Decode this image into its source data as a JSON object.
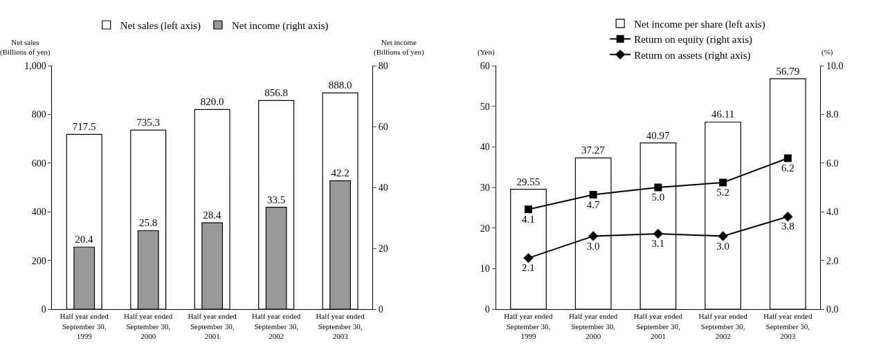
{
  "chart_data": [
    {
      "type": "bar",
      "categories": [
        "Half year ended September 30, 1999",
        "Half year ended September 30, 2000",
        "Half year ended September 30, 2001",
        "Half year ended September 30, 2002",
        "Half year ended September 30, 2003"
      ],
      "ylabel": "Net sales\n(Billions of yen)",
      "y2label": "Net income\n(Billions of yen)",
      "series": [
        {
          "name": "Net sales (left axis)",
          "color": "#ffffff",
          "values": [
            717.5,
            735.3,
            820.0,
            856.8,
            888.0
          ],
          "value_labels": [
            "717.5",
            "735.3",
            "820.0",
            "856.8",
            "888.0"
          ]
        },
        {
          "name": "Net income (right axis)",
          "axis": "y2",
          "color": "#999999",
          "values": [
            20.4,
            25.8,
            28.4,
            33.5,
            42.2
          ],
          "value_labels": [
            "20.4",
            "25.8",
            "28.4",
            "33.5",
            "42.2"
          ]
        }
      ],
      "ylim": [
        0,
        1000
      ],
      "yticks": [
        0,
        200,
        400,
        600,
        800,
        {
          "value": 1000,
          "label": "1,000"
        }
      ],
      "y2lim": [
        0,
        80
      ],
      "y2ticks": [
        0,
        20,
        40,
        60,
        80
      ],
      "grid": false,
      "legend": "top"
    },
    {
      "type": "bar",
      "categories": [
        "Half year ended September 30, 1999",
        "Half year ended September 30, 2000",
        "Half year ended September 30, 2001",
        "Half year ended September 30, 2002",
        "Half year ended September 30, 2003"
      ],
      "ylabel": "(Yen)",
      "y2label": "(%)",
      "series": [
        {
          "name": "Net income per share (left axis)",
          "color": "#ffffff",
          "values": [
            29.55,
            37.27,
            40.97,
            46.11,
            56.79
          ],
          "value_labels": [
            "29.55",
            "37.27",
            "40.97",
            "46.11",
            "56.79"
          ]
        },
        {
          "name": "Return on equity (right axis)",
          "type": "line",
          "axis": "y2",
          "marker": "square",
          "color": "#000000",
          "values": [
            4.1,
            4.7,
            5.0,
            5.2,
            6.2
          ],
          "value_labels": [
            "4.1",
            "4.7",
            "5.0",
            "5.2",
            "6.2"
          ]
        },
        {
          "name": "Return on assets (right axis)",
          "type": "line",
          "axis": "y2",
          "marker": "diamond",
          "color": "#000000",
          "values": [
            2.1,
            3.0,
            3.1,
            3.0,
            3.8
          ],
          "value_labels": [
            "2.1",
            "3.0",
            "3.1",
            "3.0",
            "3.8"
          ]
        }
      ],
      "ylim": [
        0,
        60
      ],
      "yticks": [
        0,
        10,
        20,
        30,
        40,
        50,
        60
      ],
      "y2lim": [
        0,
        10
      ],
      "y2ticks": [
        {
          "value": 0,
          "label": "0.0"
        },
        {
          "value": 2,
          "label": "2.0"
        },
        {
          "value": 4,
          "label": "4.0"
        },
        {
          "value": 6,
          "label": "6.0"
        },
        {
          "value": 8,
          "label": "8.0"
        },
        {
          "value": 10,
          "label": "10.0"
        }
      ],
      "grid": false,
      "legend": "top right"
    }
  ]
}
